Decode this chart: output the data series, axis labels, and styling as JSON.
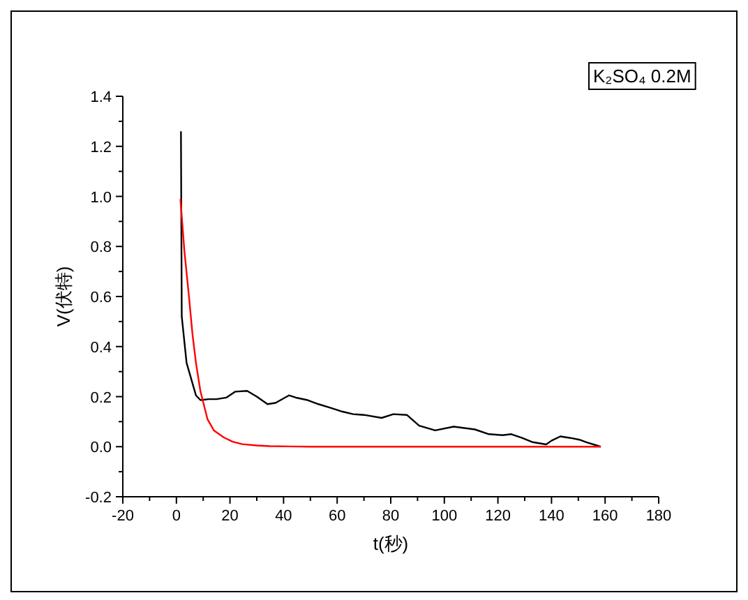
{
  "chart_data": {
    "type": "line",
    "xlabel": "t(秒)",
    "ylabel": "V(伏特)",
    "annotations": [
      "K₂SO₄ 0.2M"
    ],
    "xlim": [
      -20,
      180
    ],
    "xticks": [
      -20,
      0,
      20,
      40,
      60,
      80,
      100,
      120,
      140,
      160,
      180
    ],
    "ylim": [
      -0.2,
      1.4
    ],
    "yticks": [
      -0.2,
      {
        "value": 0,
        "label": "0.0"
      },
      0.2,
      0.4,
      0.6,
      0.8,
      {
        "value": 1,
        "label": "1.0"
      },
      1.2,
      1.4
    ],
    "grid": false,
    "marker": "none",
    "line_style": "solid",
    "series": [
      {
        "color": "#000000",
        "x": [
          1.7,
          2,
          3.8,
          7.3,
          9,
          12,
          15,
          18.6,
          22,
          26.4,
          30,
          34,
          37,
          42,
          45,
          49,
          53,
          57.6,
          62,
          66,
          70,
          76.6,
          81,
          86,
          90.6,
          96.6,
          103.5,
          111.4,
          116.6,
          121.8,
          125,
          129,
          133,
          138,
          140,
          143.3,
          147,
          150.4,
          153,
          158.4
        ],
        "values": [
          1.26,
          0.52,
          0.335,
          0.205,
          0.186,
          0.19,
          0.19,
          0.196,
          0.22,
          0.223,
          0.2,
          0.17,
          0.175,
          0.205,
          0.195,
          0.186,
          0.17,
          0.155,
          0.14,
          0.13,
          0.127,
          0.115,
          0.13,
          0.127,
          0.084,
          0.065,
          0.08,
          0.069,
          0.05,
          0.046,
          0.05,
          0.035,
          0.018,
          0.009,
          0.024,
          0.041,
          0.035,
          0.028,
          0.018,
          0
        ]
      },
      {
        "color": "#ff0000",
        "x": [
          1.5,
          3,
          4.6,
          6,
          7.3,
          9,
          11.6,
          14,
          17.7,
          21,
          24.6,
          30,
          35,
          42,
          50,
          80,
          120,
          158.4
        ],
        "values": [
          0.99,
          0.78,
          0.61,
          0.45,
          0.335,
          0.22,
          0.11,
          0.065,
          0.037,
          0.02,
          0.01,
          0.005,
          0.002,
          0.001,
          0,
          0,
          0,
          0
        ]
      }
    ]
  }
}
